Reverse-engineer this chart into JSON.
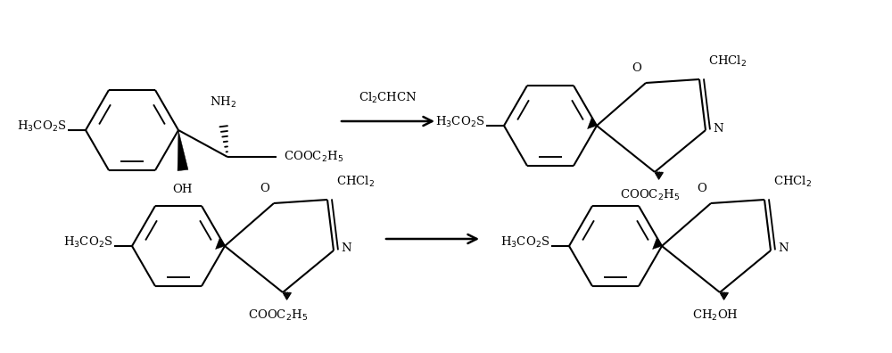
{
  "bg_color": "#ffffff",
  "line_color": "#000000",
  "line_width": 1.5,
  "font_size": 9.5,
  "figsize": [
    10.0,
    3.96
  ],
  "dpi": 100,
  "xlim": [
    0,
    1000
  ],
  "ylim": [
    0,
    396
  ]
}
